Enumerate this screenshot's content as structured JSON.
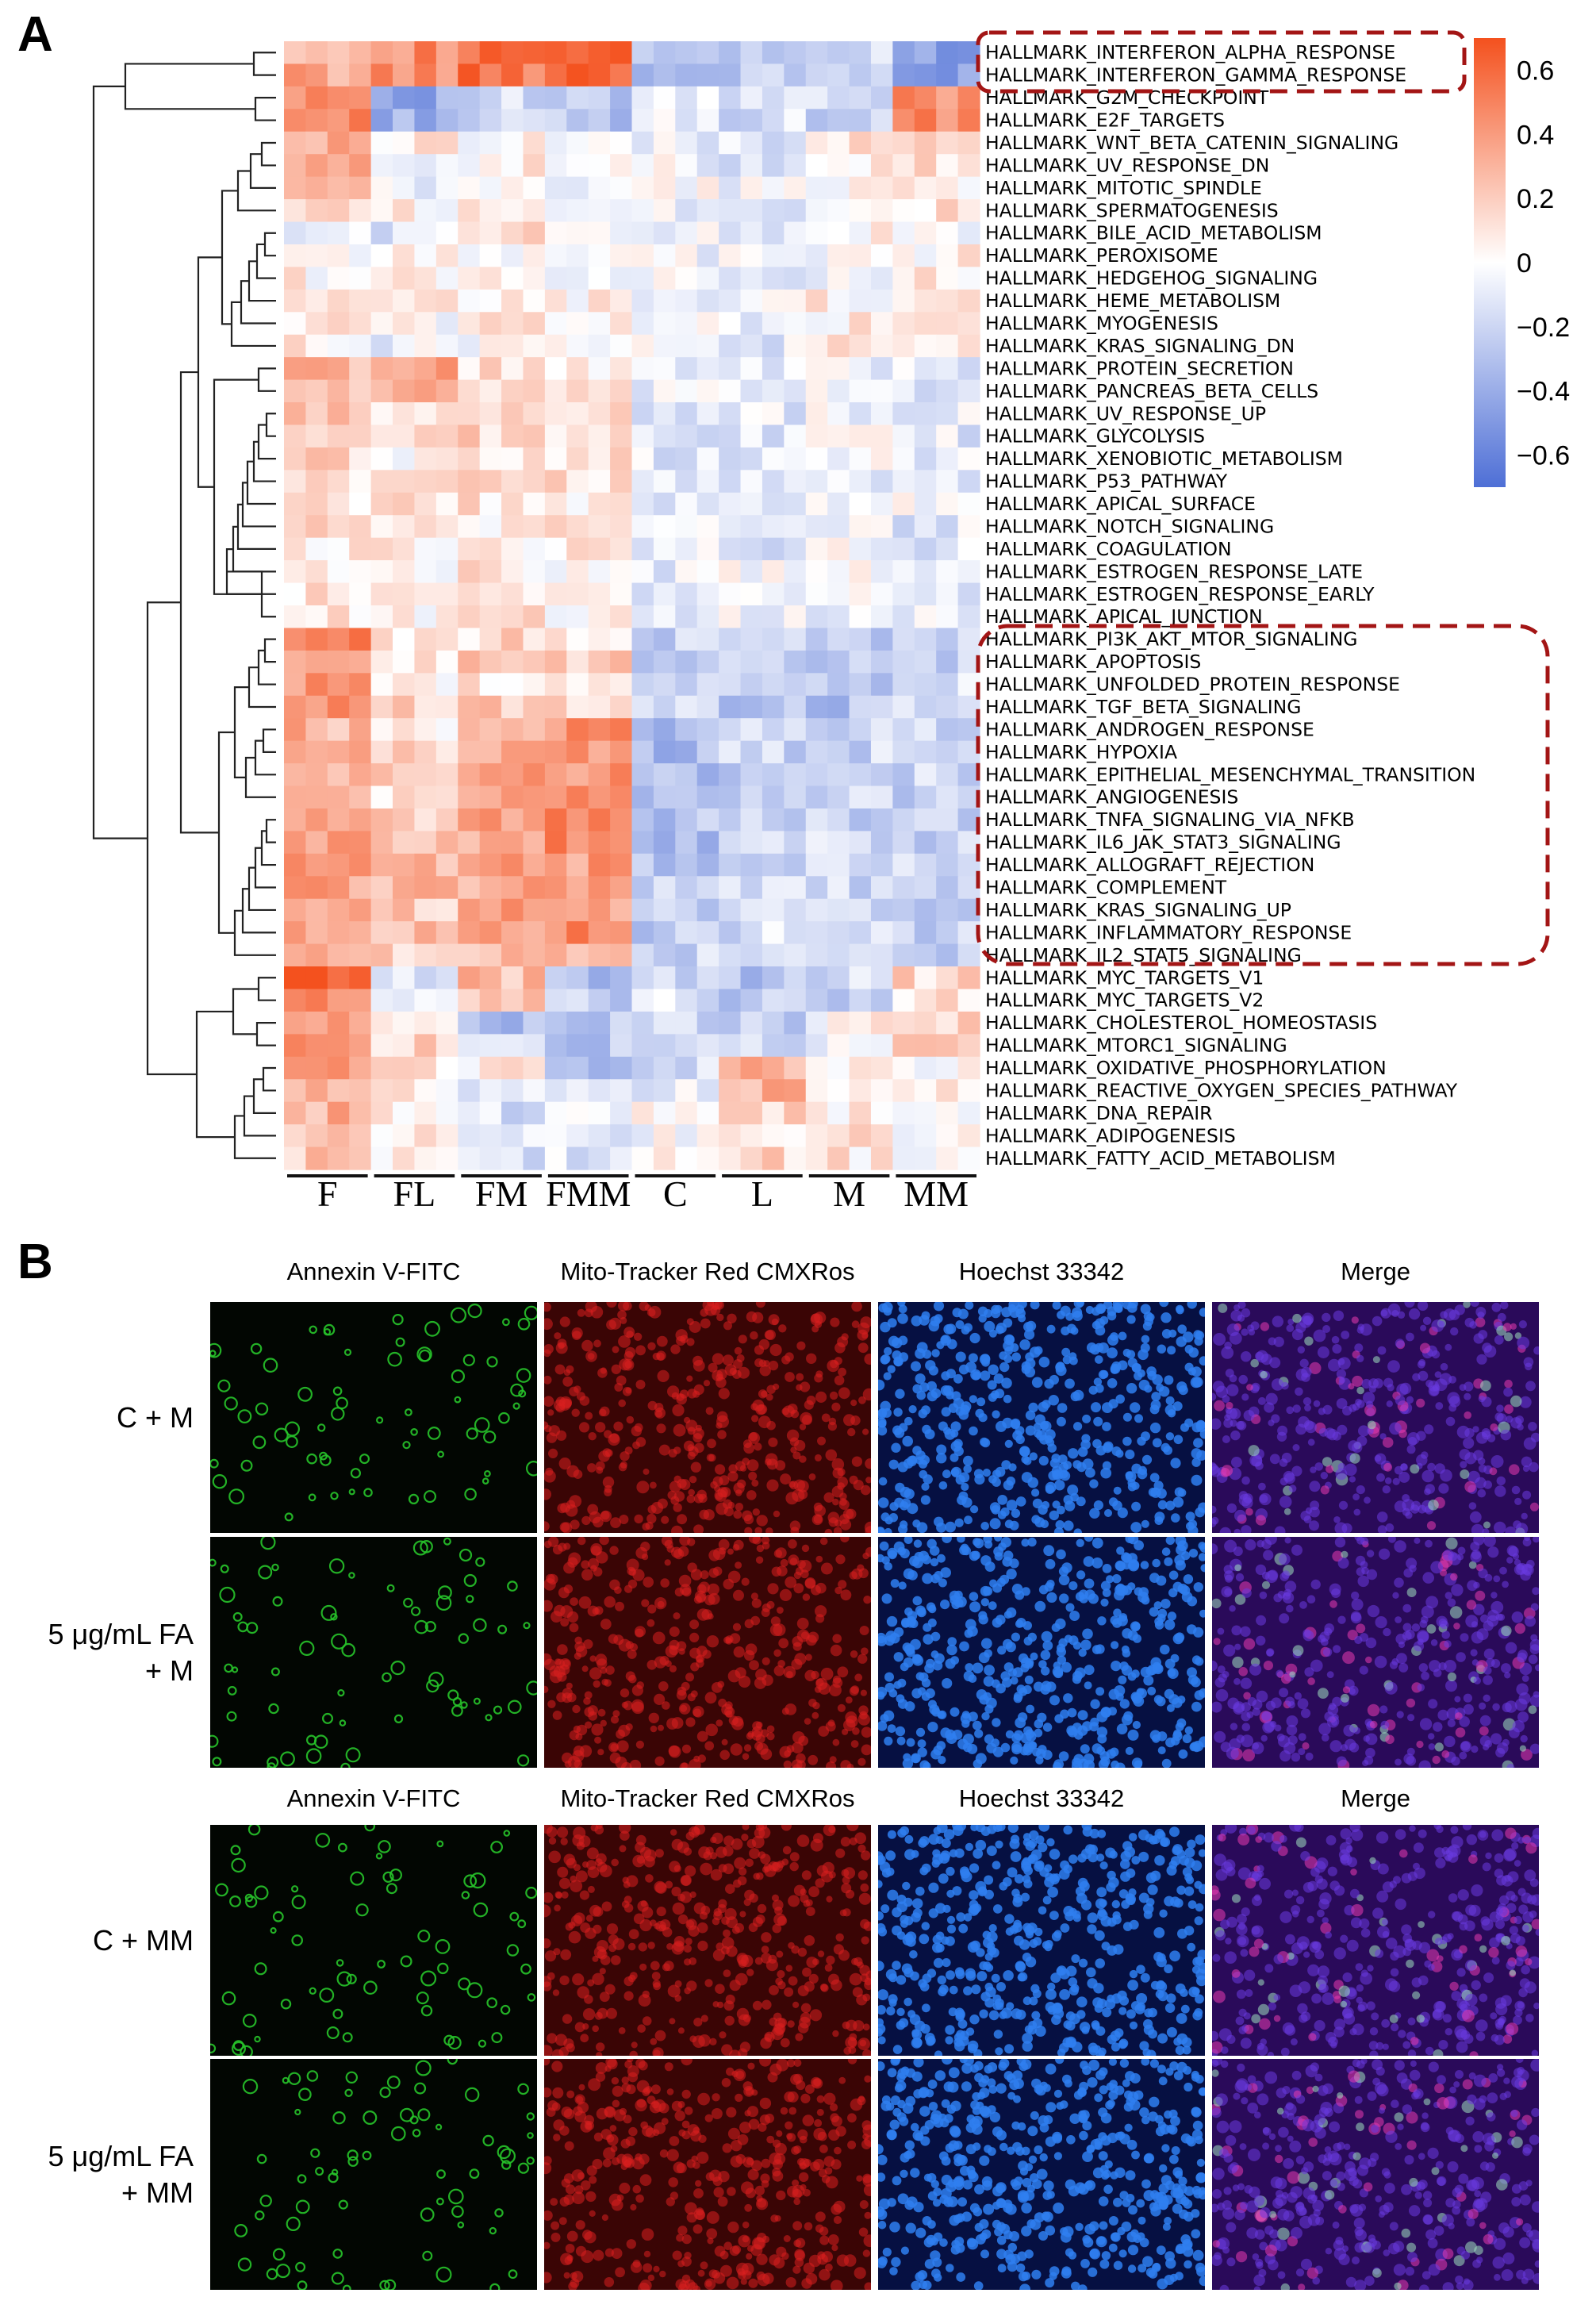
{
  "panel_a": {
    "letter": "A",
    "pathways": [
      "HALLMARK_INTERFERON_ALPHA_RESPONSE",
      "HALLMARK_INTERFERON_GAMMA_RESPONSE",
      "HALLMARK_G2M_CHECKPOINT",
      "HALLMARK_E2F_TARGETS",
      "HALLMARK_WNT_BETA_CATENIN_SIGNALING",
      "HALLMARK_UV_RESPONSE_DN",
      "HALLMARK_MITOTIC_SPINDLE",
      "HALLMARK_SPERMATOGENESIS",
      "HALLMARK_BILE_ACID_METABOLISM",
      "HALLMARK_PEROXISOME",
      "HALLMARK_HEDGEHOG_SIGNALING",
      "HALLMARK_HEME_METABOLISM",
      "HALLMARK_MYOGENESIS",
      "HALLMARK_KRAS_SIGNALING_DN",
      "HALLMARK_PROTEIN_SECRETION",
      "HALLMARK_PANCREAS_BETA_CELLS",
      "HALLMARK_UV_RESPONSE_UP",
      "HALLMARK_GLYCOLYSIS",
      "HALLMARK_XENOBIOTIC_METABOLISM",
      "HALLMARK_P53_PATHWAY",
      "HALLMARK_APICAL_SURFACE",
      "HALLMARK_NOTCH_SIGNALING",
      "HALLMARK_COAGULATION",
      "HALLMARK_ESTROGEN_RESPONSE_LATE",
      "HALLMARK_ESTROGEN_RESPONSE_EARLY",
      "HALLMARK_APICAL_JUNCTION",
      "HALLMARK_PI3K_AKT_MTOR_SIGNALING",
      "HALLMARK_APOPTOSIS",
      "HALLMARK_UNFOLDED_PROTEIN_RESPONSE",
      "HALLMARK_TGF_BETA_SIGNALING",
      "HALLMARK_ANDROGEN_RESPONSE",
      "HALLMARK_HYPOXIA",
      "HALLMARK_EPITHELIAL_MESENCHYMAL_TRANSITION",
      "HALLMARK_ANGIOGENESIS",
      "HALLMARK_TNFA_SIGNALING_VIA_NFKB",
      "HALLMARK_IL6_JAK_STAT3_SIGNALING",
      "HALLMARK_ALLOGRAFT_REJECTION",
      "HALLMARK_COMPLEMENT",
      "HALLMARK_KRAS_SIGNALING_UP",
      "HALLMARK_INFLAMMATORY_RESPONSE",
      "HALLMARK_IL2_STAT5_SIGNALING",
      "HALLMARK_MYC_TARGETS_V1",
      "HALLMARK_MYC_TARGETS_V2",
      "HALLMARK_CHOLESTEROL_HOMEOSTASIS",
      "HALLMARK_MTORC1_SIGNALING",
      "HALLMARK_OXIDATIVE_PHOSPHORYLATION",
      "HALLMARK_REACTIVE_OXYGEN_SPECIES_PATHWAY",
      "HALLMARK_DNA_REPAIR",
      "HALLMARK_ADIPOGENESIS",
      "HALLMARK_FATTY_ACID_METABOLISM"
    ],
    "groups": [
      "F",
      "FL",
      "FM",
      "FMM",
      "C",
      "L",
      "M",
      "MM"
    ],
    "colorbar": {
      "ticks": [
        "0.6",
        "0.4",
        "0.2",
        "0",
        "−0.2",
        "−0.4",
        "−0.6"
      ],
      "high_color": "#f4511e",
      "mid_color": "#ffffff",
      "low_color": "#4e6fd6"
    },
    "highlight_color": "#a31515"
  },
  "panel_b": {
    "letter": "B",
    "section_1": {
      "headers": [
        "Annexin V-FITC",
        "Mito-Tracker Red CMXRos",
        "Hoechst 33342",
        "Merge"
      ],
      "rows": [
        [
          "C + M"
        ],
        [
          "5 μg/mL FA",
          "+ M"
        ]
      ]
    },
    "section_2": {
      "headers": [
        "Annexin V-FITC",
        "Mito-Tracker Red CMXRos",
        "Hoechst 33342",
        "Merge"
      ],
      "rows": [
        [
          "C + MM"
        ],
        [
          "5 μg/mL FA",
          "+ MM"
        ]
      ]
    },
    "channel_colors": {
      "annexin": "#27c42a",
      "mito": "#d81f1f",
      "hoechst": "#2f7ff0",
      "merge": "#7a2fd8"
    }
  },
  "chart_data": {
    "type": "heatmap",
    "title": "",
    "xlabel": "",
    "ylabel": "",
    "rows": "panel_a.pathways",
    "column_groups": [
      "F",
      "FL",
      "FM",
      "FMM",
      "C",
      "L",
      "M",
      "MM"
    ],
    "samples_per_group": 4,
    "zlim": [
      -0.7,
      0.7
    ],
    "group_values": [
      [
        0.35,
        0.45,
        0.55,
        0.65,
        -0.35,
        -0.25,
        -0.2,
        -0.5
      ],
      [
        0.35,
        0.45,
        0.55,
        0.65,
        -0.35,
        -0.25,
        -0.2,
        -0.5
      ],
      [
        0.5,
        -0.4,
        -0.2,
        -0.3,
        -0.1,
        -0.15,
        -0.2,
        0.45
      ],
      [
        0.45,
        -0.35,
        -0.2,
        -0.3,
        -0.1,
        -0.15,
        -0.2,
        0.45
      ],
      [
        0.3,
        0.1,
        0.05,
        0.0,
        -0.1,
        -0.1,
        0.1,
        0.15
      ],
      [
        0.3,
        0.0,
        0.05,
        0.0,
        -0.05,
        -0.1,
        0.1,
        0.15
      ],
      [
        0.25,
        -0.1,
        0.0,
        -0.05,
        0.0,
        -0.05,
        0.05,
        0.1
      ],
      [
        0.2,
        0.05,
        0.05,
        0.05,
        -0.05,
        -0.1,
        0.05,
        0.1
      ],
      [
        -0.1,
        -0.1,
        0.1,
        0.05,
        -0.05,
        -0.1,
        0.05,
        0.0
      ],
      [
        0.05,
        0.0,
        0.05,
        0.05,
        -0.05,
        -0.05,
        0.0,
        0.05
      ],
      [
        0.05,
        0.05,
        0.05,
        0.0,
        -0.05,
        -0.05,
        0.0,
        0.05
      ],
      [
        0.05,
        0.05,
        0.05,
        0.05,
        -0.05,
        -0.05,
        0.05,
        0.05
      ],
      [
        0.1,
        0.0,
        0.1,
        0.1,
        -0.05,
        -0.05,
        0.05,
        0.05
      ],
      [
        0.05,
        -0.05,
        0.0,
        0.05,
        -0.05,
        -0.1,
        0.1,
        0.05
      ],
      [
        0.3,
        0.35,
        0.1,
        0.1,
        -0.15,
        -0.05,
        -0.05,
        -0.1
      ],
      [
        0.25,
        0.3,
        0.1,
        0.05,
        -0.1,
        -0.05,
        -0.05,
        -0.1
      ],
      [
        0.2,
        0.1,
        0.15,
        0.15,
        -0.1,
        -0.1,
        -0.05,
        -0.1
      ],
      [
        0.2,
        0.1,
        0.15,
        0.15,
        -0.15,
        -0.1,
        -0.05,
        -0.1
      ],
      [
        0.15,
        0.05,
        0.1,
        0.1,
        -0.1,
        -0.1,
        -0.05,
        -0.1
      ],
      [
        0.15,
        0.05,
        0.15,
        0.15,
        -0.1,
        -0.1,
        -0.05,
        -0.1
      ],
      [
        0.1,
        0.1,
        0.1,
        0.1,
        -0.15,
        -0.1,
        0.0,
        -0.05
      ],
      [
        0.15,
        0.05,
        0.1,
        0.1,
        -0.1,
        -0.1,
        -0.05,
        -0.1
      ],
      [
        0.1,
        0.05,
        0.1,
        0.1,
        -0.1,
        -0.1,
        -0.05,
        -0.1
      ],
      [
        0.1,
        0.05,
        0.1,
        0.05,
        -0.1,
        -0.05,
        -0.05,
        -0.1
      ],
      [
        0.1,
        0.05,
        0.1,
        0.05,
        -0.1,
        -0.05,
        -0.05,
        -0.1
      ],
      [
        0.1,
        0.05,
        0.1,
        0.05,
        -0.1,
        -0.05,
        -0.05,
        -0.1
      ],
      [
        0.45,
        0.05,
        0.15,
        0.05,
        -0.2,
        -0.2,
        -0.25,
        -0.2
      ],
      [
        0.45,
        0.1,
        0.2,
        0.2,
        -0.25,
        -0.25,
        -0.25,
        -0.2
      ],
      [
        0.4,
        0.0,
        0.1,
        0.05,
        -0.2,
        -0.25,
        -0.25,
        -0.15
      ],
      [
        0.45,
        0.15,
        0.2,
        0.2,
        -0.2,
        -0.3,
        -0.3,
        -0.2
      ],
      [
        0.3,
        0.1,
        0.25,
        0.45,
        -0.3,
        -0.2,
        -0.15,
        -0.2
      ],
      [
        0.3,
        0.15,
        0.3,
        0.45,
        -0.35,
        -0.2,
        -0.2,
        -0.2
      ],
      [
        0.35,
        0.15,
        0.35,
        0.45,
        -0.35,
        -0.2,
        -0.2,
        -0.2
      ],
      [
        0.35,
        0.15,
        0.35,
        0.45,
        -0.35,
        -0.2,
        -0.2,
        -0.2
      ],
      [
        0.4,
        0.2,
        0.35,
        0.45,
        -0.3,
        -0.2,
        -0.2,
        -0.2
      ],
      [
        0.4,
        0.25,
        0.35,
        0.45,
        -0.3,
        -0.2,
        -0.2,
        -0.2
      ],
      [
        0.35,
        0.25,
        0.35,
        0.4,
        -0.25,
        -0.15,
        -0.2,
        -0.2
      ],
      [
        0.35,
        0.25,
        0.35,
        0.45,
        -0.25,
        -0.15,
        -0.2,
        -0.2
      ],
      [
        0.35,
        0.2,
        0.35,
        0.4,
        -0.25,
        -0.15,
        -0.2,
        -0.2
      ],
      [
        0.35,
        0.25,
        0.35,
        0.45,
        -0.25,
        -0.15,
        -0.2,
        -0.2
      ],
      [
        0.3,
        0.2,
        0.3,
        0.35,
        -0.2,
        -0.15,
        -0.15,
        -0.2
      ],
      [
        0.6,
        -0.15,
        0.25,
        -0.3,
        -0.15,
        -0.3,
        -0.2,
        0.15
      ],
      [
        0.5,
        -0.1,
        0.2,
        -0.25,
        -0.1,
        -0.25,
        -0.2,
        0.1
      ],
      [
        0.45,
        0.15,
        -0.35,
        -0.3,
        -0.2,
        -0.25,
        0.05,
        0.2
      ],
      [
        0.45,
        0.15,
        -0.2,
        -0.25,
        -0.15,
        -0.2,
        0.0,
        0.15
      ],
      [
        0.35,
        0.1,
        0.05,
        -0.3,
        -0.15,
        0.3,
        0.05,
        0.0
      ],
      [
        0.3,
        0.1,
        -0.15,
        -0.15,
        -0.1,
        0.3,
        0.05,
        0.05
      ],
      [
        0.3,
        0.1,
        -0.15,
        -0.1,
        0.05,
        0.2,
        0.05,
        0.05
      ],
      [
        0.25,
        0.05,
        -0.1,
        -0.1,
        0.0,
        0.15,
        0.1,
        0.05
      ],
      [
        0.2,
        0.05,
        -0.15,
        -0.1,
        0.05,
        0.15,
        0.1,
        0.05
      ]
    ]
  }
}
